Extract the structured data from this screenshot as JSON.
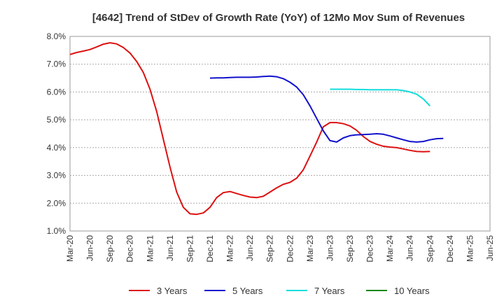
{
  "chart_data": {
    "type": "line",
    "title": "[4642]  Trend of StDev of Growth Rate (YoY) of 12Mo Mov Sum of Revenues",
    "xlabel": "",
    "ylabel": "",
    "ylim": [
      1.0,
      8.0
    ],
    "y_ticks": [
      "1.0%",
      "2.0%",
      "3.0%",
      "4.0%",
      "5.0%",
      "6.0%",
      "7.0%",
      "8.0%"
    ],
    "y_tick_values": [
      1,
      2,
      3,
      4,
      5,
      6,
      7,
      8
    ],
    "x_ticks": [
      "Mar-20",
      "Jun-20",
      "Sep-20",
      "Dec-20",
      "Mar-21",
      "Jun-21",
      "Sep-21",
      "Dec-21",
      "Mar-22",
      "Jun-22",
      "Sep-22",
      "Dec-22",
      "Mar-23",
      "Jun-23",
      "Sep-23",
      "Dec-23",
      "Mar-24",
      "Jun-24",
      "Sep-24",
      "Dec-24",
      "Mar-25",
      "Jun-25"
    ],
    "x_range_months": [
      0,
      63
    ],
    "grid": "horizontal dotted",
    "legend_position": "bottom",
    "series": [
      {
        "name": "3 Years",
        "color": "#dd1111",
        "start_month": 0,
        "values": [
          7.35,
          7.42,
          7.47,
          7.53,
          7.62,
          7.72,
          7.77,
          7.73,
          7.6,
          7.4,
          7.1,
          6.7,
          6.1,
          5.3,
          4.3,
          3.3,
          2.4,
          1.85,
          1.62,
          1.6,
          1.65,
          1.85,
          2.2,
          2.38,
          2.42,
          2.35,
          2.28,
          2.22,
          2.2,
          2.25,
          2.4,
          2.55,
          2.68,
          2.75,
          2.9,
          3.2,
          3.7,
          4.2,
          4.75,
          4.9,
          4.9,
          4.86,
          4.78,
          4.62,
          4.4,
          4.22,
          4.12,
          4.05,
          4.02,
          4.0,
          3.95,
          3.9,
          3.86,
          3.85,
          3.86
        ]
      },
      {
        "name": "5 Years",
        "color": "#1111cc",
        "start_month": 21,
        "values": [
          6.5,
          6.51,
          6.51,
          6.52,
          6.53,
          6.53,
          6.53,
          6.54,
          6.56,
          6.57,
          6.55,
          6.48,
          6.35,
          6.18,
          5.9,
          5.5,
          5.05,
          4.6,
          4.25,
          4.2,
          4.35,
          4.43,
          4.46,
          4.47,
          4.48,
          4.5,
          4.48,
          4.42,
          4.35,
          4.28,
          4.22,
          4.2,
          4.22,
          4.28,
          4.32,
          4.33
        ]
      },
      {
        "name": "7 Years",
        "color": "#11dddd",
        "start_month": 39,
        "values": [
          6.1,
          6.1,
          6.1,
          6.1,
          6.09,
          6.09,
          6.08,
          6.08,
          6.08,
          6.08,
          6.08,
          6.05,
          6.0,
          5.92,
          5.75,
          5.5
        ]
      },
      {
        "name": "10 Years",
        "color": "#118811",
        "start_month": 0,
        "values": []
      }
    ]
  }
}
